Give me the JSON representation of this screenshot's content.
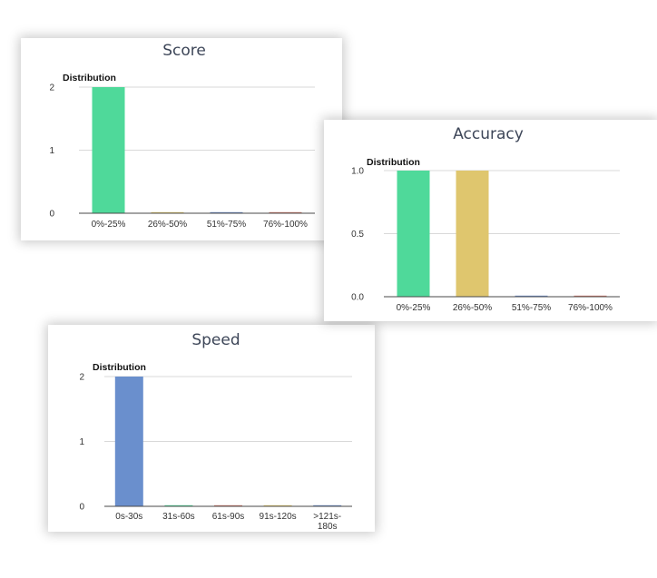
{
  "chart_data": [
    {
      "type": "bar",
      "title": "Score",
      "subtitle": "Distribution",
      "categories": [
        "0%-25%",
        "26%-50%",
        "51%-75%",
        "76%-100%"
      ],
      "values": [
        2,
        0,
        0,
        0
      ],
      "colors": [
        "#4fd99a",
        "#e4c96d",
        "#6c8fcb",
        "#d27a6b"
      ],
      "yticks": [
        "0",
        "1",
        "2"
      ],
      "ylim": [
        0,
        2
      ],
      "grid": true
    },
    {
      "type": "bar",
      "title": "Accuracy",
      "subtitle": "Distribution",
      "categories": [
        "0%-25%",
        "26%-50%",
        "51%-75%",
        "76%-100%"
      ],
      "values": [
        1,
        1,
        0,
        0
      ],
      "colors": [
        "#4fd99a",
        "#dfc66e",
        "#6c8fcb",
        "#d27a6b"
      ],
      "yticks": [
        "0.0",
        "0.5",
        "1.0"
      ],
      "ylim": [
        0,
        1
      ],
      "grid": true
    },
    {
      "type": "bar",
      "title": "Speed",
      "subtitle": "Distribution",
      "categories": [
        "0s-30s",
        "31s-60s",
        "61s-90s",
        "91s-120s",
        ">121s-180s"
      ],
      "category_lines": [
        [
          "0s-30s"
        ],
        [
          "31s-60s"
        ],
        [
          "61s-90s"
        ],
        [
          "91s-120s"
        ],
        [
          ">121s-",
          "180s"
        ]
      ],
      "values": [
        2,
        0,
        0,
        0,
        0
      ],
      "colors": [
        "#6a8fcd",
        "#4fd99a",
        "#d27a6b",
        "#e4c96d",
        "#6c8fcb"
      ],
      "yticks": [
        "0",
        "1",
        "2"
      ],
      "ylim": [
        0,
        2
      ],
      "grid": true
    }
  ]
}
